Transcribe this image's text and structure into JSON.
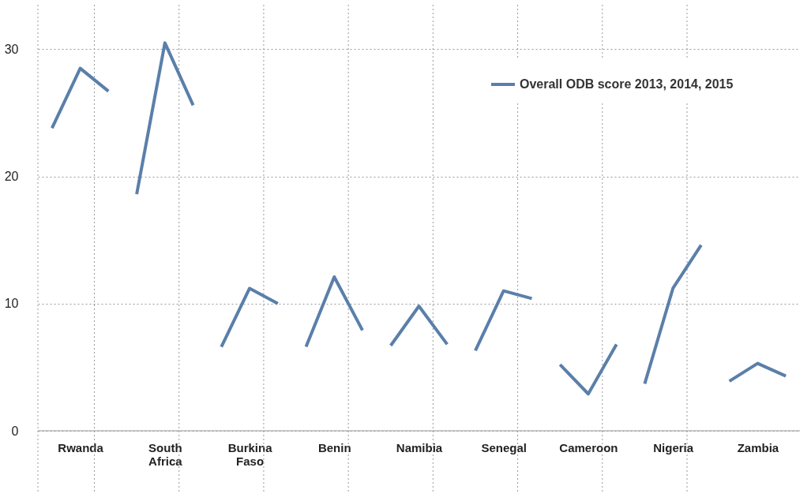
{
  "chart_data": {
    "type": "line",
    "categories": [
      null,
      "Rwanda",
      null,
      null,
      "South Africa",
      null,
      null,
      "Burkina Faso",
      null,
      null,
      "Benin",
      null,
      null,
      "Namibia",
      null,
      null,
      "Senegal",
      null,
      null,
      "Cameroon",
      null,
      null,
      "Nigeria",
      null,
      null,
      "Zambia",
      null
    ],
    "series": [
      {
        "name": "Overall ODB score 2013, 2014, 2015",
        "color": "#5a7fa9",
        "values": [
          23.8,
          28.5,
          26.7,
          null,
          null,
          null,
          null,
          null,
          null,
          null,
          null,
          null,
          null,
          null,
          null,
          null,
          null,
          null,
          null,
          null,
          null,
          null,
          null,
          null,
          null,
          null,
          null
        ]
      },
      {
        "color": "#5a7fa9",
        "values": [
          null,
          null,
          null,
          18.6,
          30.5,
          25.6,
          null,
          null,
          null,
          null,
          null,
          null,
          null,
          null,
          null,
          null,
          null,
          null,
          null,
          null,
          null,
          null,
          null,
          null,
          null,
          null,
          null
        ]
      },
      {
        "color": "#5a7fa9",
        "values": [
          null,
          null,
          null,
          null,
          null,
          null,
          6.6,
          11.2,
          10.0,
          null,
          null,
          null,
          null,
          null,
          null,
          null,
          null,
          null,
          null,
          null,
          null,
          null,
          null,
          null,
          null,
          null,
          null
        ]
      },
      {
        "color": "#5a7fa9",
        "values": [
          null,
          null,
          null,
          null,
          null,
          null,
          null,
          null,
          null,
          6.6,
          12.1,
          7.9,
          null,
          null,
          null,
          null,
          null,
          null,
          null,
          null,
          null,
          null,
          null,
          null,
          null,
          null,
          null
        ]
      },
      {
        "color": "#5a7fa9",
        "values": [
          null,
          null,
          null,
          null,
          null,
          null,
          null,
          null,
          null,
          null,
          null,
          null,
          6.7,
          9.8,
          6.8,
          null,
          null,
          null,
          null,
          null,
          null,
          null,
          null,
          null,
          null,
          null,
          null
        ]
      },
      {
        "color": "#5a7fa9",
        "values": [
          null,
          null,
          null,
          null,
          null,
          null,
          null,
          null,
          null,
          null,
          null,
          null,
          null,
          null,
          null,
          6.3,
          11.0,
          10.4,
          null,
          null,
          null,
          null,
          null,
          null,
          null,
          null,
          null
        ]
      },
      {
        "color": "#5a7fa9",
        "values": [
          null,
          null,
          null,
          null,
          null,
          null,
          null,
          null,
          null,
          null,
          null,
          null,
          null,
          null,
          null,
          null,
          null,
          null,
          5.2,
          2.9,
          6.8,
          null,
          null,
          null,
          null,
          null,
          null
        ]
      },
      {
        "color": "#5a7fa9",
        "values": [
          null,
          null,
          null,
          null,
          null,
          null,
          null,
          null,
          null,
          null,
          null,
          null,
          null,
          null,
          null,
          null,
          null,
          null,
          null,
          null,
          null,
          3.7,
          11.2,
          14.6,
          null,
          null,
          null
        ]
      },
      {
        "color": "#5a7fa9",
        "values": [
          null,
          null,
          null,
          null,
          null,
          null,
          null,
          null,
          null,
          null,
          null,
          null,
          null,
          null,
          null,
          null,
          null,
          null,
          null,
          null,
          null,
          null,
          null,
          null,
          3.9,
          5.3,
          4.3
        ]
      }
    ],
    "ylim": [
      0,
      33.5
    ],
    "yticks": [
      0,
      10,
      20,
      30
    ],
    "grid": true,
    "legend": "top right",
    "marker": "none",
    "line_style": "solid"
  }
}
